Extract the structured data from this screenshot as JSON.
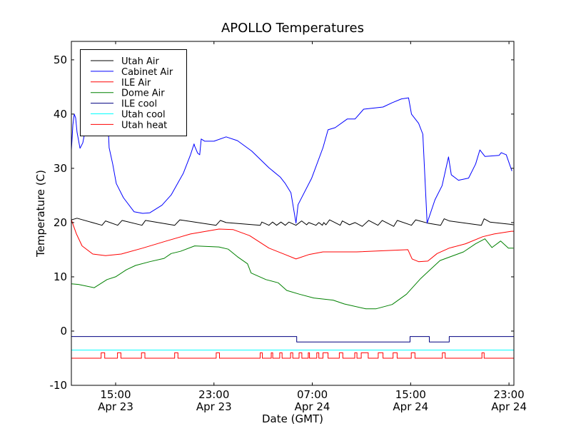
{
  "chart_data": {
    "type": "line",
    "title": "APOLLO Temperatures",
    "xlabel": "Date (GMT)",
    "ylabel": "Temperature (C)",
    "x_units": "hours since Apr 23 00:00 GMT",
    "xlim": [
      11.4,
      47.4
    ],
    "ylim": [
      -10,
      53.4
    ],
    "grid": false,
    "legend_position": "top-left",
    "xticks": [
      {
        "value": 15,
        "time": "15:00",
        "date": "Apr 23"
      },
      {
        "value": 23,
        "time": "23:00",
        "date": "Apr 23"
      },
      {
        "value": 31,
        "time": "07:00",
        "date": "Apr 24"
      },
      {
        "value": 39,
        "time": "15:00",
        "date": "Apr 24"
      },
      {
        "value": 47,
        "time": "23:00",
        "date": "Apr 24"
      }
    ],
    "yticks": [
      -10,
      0,
      10,
      20,
      30,
      40,
      50
    ],
    "series": [
      {
        "name": "Utah Air",
        "color": "#000000",
        "points": [
          [
            11.4,
            20.5
          ],
          [
            11.86,
            20.8
          ],
          [
            13.89,
            19.5
          ],
          [
            14.18,
            20.3
          ],
          [
            15.17,
            19.5
          ],
          [
            15.52,
            20.4
          ],
          [
            17.14,
            19.5
          ],
          [
            17.43,
            20.4
          ],
          [
            19.81,
            19.5
          ],
          [
            20.22,
            20.5
          ],
          [
            23.17,
            19.5
          ],
          [
            23.52,
            20.4
          ],
          [
            23.99,
            20.0
          ],
          [
            26.77,
            19.5
          ],
          [
            26.89,
            20.1
          ],
          [
            27.47,
            19.5
          ],
          [
            27.76,
            20.1
          ],
          [
            28.1,
            19.5
          ],
          [
            28.45,
            20.1
          ],
          [
            28.8,
            19.5
          ],
          [
            29.09,
            20.1
          ],
          [
            29.67,
            19.5
          ],
          [
            30.13,
            20.3
          ],
          [
            30.54,
            19.6
          ],
          [
            30.71,
            20.0
          ],
          [
            31.29,
            19.5
          ],
          [
            31.53,
            20.0
          ],
          [
            31.82,
            19.5
          ],
          [
            31.93,
            20.0
          ],
          [
            32.11,
            19.6
          ],
          [
            32.4,
            20.5
          ],
          [
            33.27,
            19.5
          ],
          [
            33.44,
            20.3
          ],
          [
            34.02,
            19.6
          ],
          [
            34.48,
            20.0
          ],
          [
            35.06,
            19.3
          ],
          [
            35.59,
            20.4
          ],
          [
            36.34,
            19.5
          ],
          [
            36.69,
            20.4
          ],
          [
            37.62,
            19.3
          ],
          [
            37.91,
            20.4
          ],
          [
            39.07,
            19.5
          ],
          [
            39.41,
            20.5
          ],
          [
            40.4,
            19.9
          ],
          [
            41.44,
            19.5
          ],
          [
            41.73,
            20.7
          ],
          [
            42.14,
            20.3
          ],
          [
            44.75,
            19.5
          ],
          [
            44.98,
            20.7
          ],
          [
            45.45,
            20.1
          ],
          [
            47.07,
            19.7
          ],
          [
            47.36,
            19.6
          ]
        ]
      },
      {
        "name": "Cabinet Air",
        "color": "#0000ff",
        "points": [
          [
            11.4,
            33.4
          ],
          [
            11.52,
            38.0
          ],
          [
            11.63,
            40.0
          ],
          [
            11.75,
            39.3
          ],
          [
            11.86,
            36.7
          ],
          [
            12.1,
            33.7
          ],
          [
            12.33,
            34.7
          ],
          [
            12.56,
            37.4
          ],
          [
            12.85,
            39.3
          ],
          [
            13.72,
            40.0
          ],
          [
            14.42,
            36.4
          ],
          [
            14.47,
            33.8
          ],
          [
            14.76,
            30.8
          ],
          [
            15.05,
            27.2
          ],
          [
            15.63,
            24.6
          ],
          [
            16.5,
            22.0
          ],
          [
            17.2,
            21.7
          ],
          [
            17.78,
            21.8
          ],
          [
            18.77,
            23.2
          ],
          [
            19.52,
            25.1
          ],
          [
            20.51,
            29.1
          ],
          [
            21.09,
            32.5
          ],
          [
            21.38,
            34.5
          ],
          [
            21.43,
            34.1
          ],
          [
            21.67,
            32.8
          ],
          [
            21.84,
            32.5
          ],
          [
            21.96,
            35.4
          ],
          [
            22.25,
            35.0
          ],
          [
            23.0,
            35.0
          ],
          [
            23.99,
            35.8
          ],
          [
            24.91,
            35.1
          ],
          [
            26.07,
            33.2
          ],
          [
            27.47,
            30.1
          ],
          [
            28.39,
            28.4
          ],
          [
            28.8,
            27.2
          ],
          [
            29.26,
            25.5
          ],
          [
            29.67,
            19.9
          ],
          [
            29.84,
            23.3
          ],
          [
            30.95,
            28.2
          ],
          [
            31.87,
            33.8
          ],
          [
            32.28,
            37.1
          ],
          [
            32.86,
            37.5
          ],
          [
            33.85,
            39.1
          ],
          [
            34.48,
            39.1
          ],
          [
            35.18,
            40.9
          ],
          [
            36.75,
            41.3
          ],
          [
            37.5,
            42.1
          ],
          [
            38.25,
            42.8
          ],
          [
            38.83,
            43.0
          ],
          [
            39.07,
            40.0
          ],
          [
            39.65,
            38.3
          ],
          [
            39.99,
            36.3
          ],
          [
            40.34,
            19.9
          ],
          [
            40.98,
            24.2
          ],
          [
            41.56,
            26.8
          ],
          [
            42.08,
            32.1
          ],
          [
            42.31,
            28.8
          ],
          [
            42.89,
            27.8
          ],
          [
            43.71,
            28.2
          ],
          [
            44.29,
            30.8
          ],
          [
            44.63,
            33.4
          ],
          [
            45.04,
            32.2
          ],
          [
            46.2,
            32.4
          ],
          [
            46.37,
            32.9
          ],
          [
            46.78,
            32.5
          ],
          [
            47.24,
            29.5
          ]
        ]
      },
      {
        "name": "ILE Air",
        "color": "#ff0000",
        "points": [
          [
            11.4,
            20.5
          ],
          [
            11.81,
            17.9
          ],
          [
            12.27,
            15.7
          ],
          [
            13.14,
            14.2
          ],
          [
            14.18,
            13.9
          ],
          [
            15.46,
            14.2
          ],
          [
            17.2,
            15.3
          ],
          [
            19.11,
            16.6
          ],
          [
            21.09,
            17.9
          ],
          [
            23.41,
            18.8
          ],
          [
            24.57,
            18.7
          ],
          [
            25.9,
            17.6
          ],
          [
            27.47,
            15.3
          ],
          [
            28.8,
            14.1
          ],
          [
            29.67,
            13.3
          ],
          [
            30.71,
            14.1
          ],
          [
            31.87,
            14.6
          ],
          [
            34.6,
            14.6
          ],
          [
            38.78,
            15.0
          ],
          [
            39.12,
            13.3
          ],
          [
            39.65,
            12.8
          ],
          [
            40.4,
            12.9
          ],
          [
            41.15,
            14.3
          ],
          [
            42.14,
            15.3
          ],
          [
            43.47,
            16.1
          ],
          [
            44.87,
            17.4
          ],
          [
            45.79,
            17.9
          ],
          [
            47.19,
            18.4
          ],
          [
            47.4,
            18.4
          ]
        ]
      },
      {
        "name": "Dome Air",
        "color": "#008000",
        "points": [
          [
            11.4,
            8.7
          ],
          [
            11.98,
            8.6
          ],
          [
            13.26,
            8.0
          ],
          [
            14.3,
            9.5
          ],
          [
            15.0,
            10.0
          ],
          [
            15.87,
            11.3
          ],
          [
            16.62,
            12.1
          ],
          [
            17.78,
            12.8
          ],
          [
            18.94,
            13.4
          ],
          [
            19.52,
            14.3
          ],
          [
            20.27,
            14.7
          ],
          [
            21.43,
            15.7
          ],
          [
            23.41,
            15.5
          ],
          [
            24.16,
            15.1
          ],
          [
            24.91,
            13.7
          ],
          [
            25.73,
            12.4
          ],
          [
            26.02,
            10.7
          ],
          [
            27.23,
            9.5
          ],
          [
            28.22,
            8.9
          ],
          [
            28.92,
            7.5
          ],
          [
            29.96,
            6.8
          ],
          [
            31.12,
            6.1
          ],
          [
            32.69,
            5.7
          ],
          [
            33.61,
            5.0
          ],
          [
            35.35,
            4.1
          ],
          [
            36.17,
            4.1
          ],
          [
            37.5,
            4.9
          ],
          [
            38.66,
            6.8
          ],
          [
            39.82,
            9.7
          ],
          [
            41.39,
            13.0
          ],
          [
            43.3,
            14.6
          ],
          [
            44.29,
            16.1
          ],
          [
            45.04,
            17.0
          ],
          [
            45.62,
            15.4
          ],
          [
            46.32,
            16.6
          ],
          [
            46.95,
            15.3
          ],
          [
            47.36,
            15.3
          ]
        ]
      },
      {
        "name": "ILE cool",
        "color": "#000080",
        "points": [
          [
            11.4,
            -1
          ],
          [
            29.73,
            -1
          ],
          [
            29.73,
            -2
          ],
          [
            38.95,
            -2
          ],
          [
            38.95,
            -1
          ],
          [
            40.52,
            -1
          ],
          [
            40.52,
            -2
          ],
          [
            42.14,
            -2
          ],
          [
            42.14,
            -1
          ],
          [
            47.4,
            -1
          ]
        ]
      },
      {
        "name": "Utah cool",
        "color": "#00ffff",
        "points": [
          [
            11.4,
            -3.5
          ],
          [
            47.4,
            -3.5
          ]
        ]
      },
      {
        "name": "Utah heat",
        "color": "#ff0000",
        "baseline": -5,
        "on_value": -4,
        "on_intervals": [
          [
            13.82,
            14.11
          ],
          [
            15.15,
            15.43
          ],
          [
            17.1,
            17.38
          ],
          [
            19.8,
            20.07
          ],
          [
            23.18,
            23.45
          ],
          [
            26.76,
            26.93
          ],
          [
            27.66,
            27.78
          ],
          [
            28.35,
            28.54
          ],
          [
            29.23,
            29.41
          ],
          [
            29.92,
            30.15
          ],
          [
            30.67,
            30.77
          ],
          [
            31.36,
            31.53
          ],
          [
            31.87,
            32.28
          ],
          [
            33.2,
            33.48
          ],
          [
            34.45,
            34.63
          ],
          [
            34.98,
            35.55
          ],
          [
            36.36,
            36.75
          ],
          [
            37.57,
            37.9
          ],
          [
            39.05,
            39.35
          ],
          [
            41.58,
            41.81
          ],
          [
            44.8,
            44.98
          ]
        ]
      }
    ]
  }
}
